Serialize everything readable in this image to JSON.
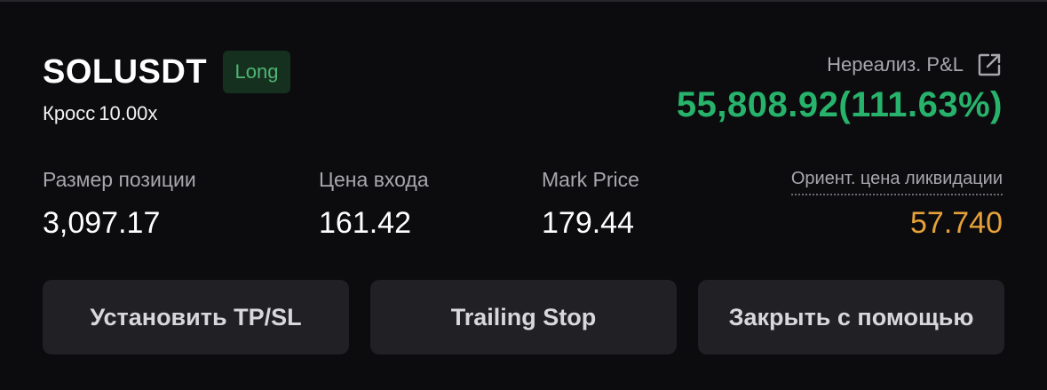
{
  "position": {
    "symbol": "SOLUSDT",
    "side": "Long",
    "margin_mode": "Кросс",
    "leverage": "10.00x"
  },
  "pnl": {
    "label": "Нереализ. P&L",
    "value": "55,808.92(111.63%)"
  },
  "stats": {
    "size_label": "Размер позиции",
    "size_value": "3,097.17",
    "entry_label": "Цена входа",
    "entry_value": "161.42",
    "mark_label": "Mark Price",
    "mark_value": "179.44",
    "liq_label": "Ориент. цена ликвидации",
    "liq_value": "57.740"
  },
  "buttons": {
    "tpsl": "Установить TP/SL",
    "trailing": "Trailing Stop",
    "close": "Закрыть с помощью"
  },
  "icons": {
    "share": "share-icon"
  },
  "colors": {
    "background": "#0c0c0e",
    "positive": "#27b36b",
    "long_badge_bg": "#16301f",
    "long_badge_text": "#4fb573",
    "liquidation": "#e6a23a",
    "button_bg": "#212125",
    "muted_text": "#a7a7ad"
  }
}
